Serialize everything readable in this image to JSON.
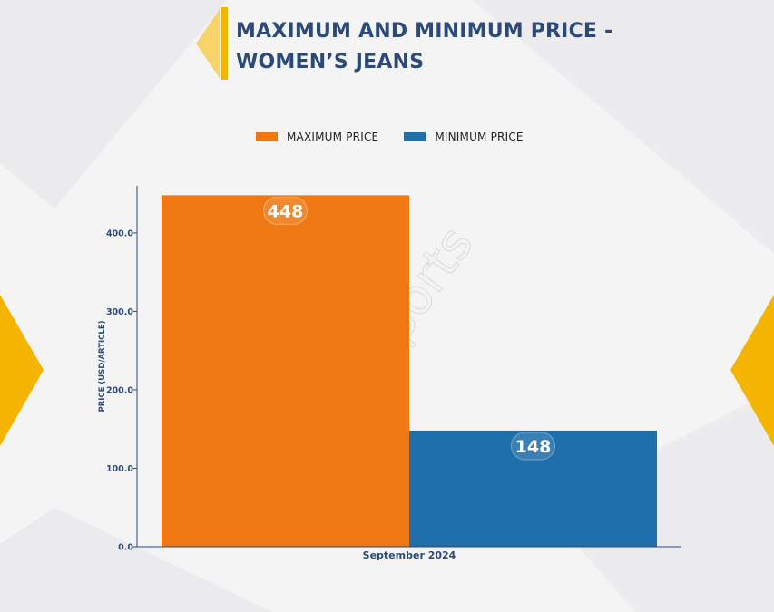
{
  "title": "MAXIMUM AND MINIMUM PRICE - WOMEN’S JEANS",
  "title_lines": [
    "MAXIMUM AND MINIMUM PRICE -",
    "WOMEN’S JEANS"
  ],
  "watermark": "D&J Reports",
  "colors": {
    "title": "#2c4a78",
    "accent": "#f5b400",
    "max": "#f07812",
    "min": "#1f6fab",
    "axis": "#2c4a78"
  },
  "legend": [
    {
      "label": "MAXIMUM PRICE",
      "color": "#f07812"
    },
    {
      "label": "MINIMUM PRICE",
      "color": "#1f6fab"
    }
  ],
  "chart_data": {
    "type": "bar",
    "categories": [
      "September 2024"
    ],
    "series": [
      {
        "name": "MAXIMUM PRICE",
        "values": [
          448
        ]
      },
      {
        "name": "MINIMUM PRICE",
        "values": [
          148
        ]
      }
    ],
    "xlabel": "September 2024",
    "ylabel": "PRICE (USD/ARTICLE)",
    "ylim": [
      0,
      460
    ],
    "yticks": [
      0,
      100,
      200,
      300,
      400
    ],
    "ytick_labels": [
      "0.0",
      "100.0",
      "200.0",
      "300.0",
      "400.0"
    ],
    "data_labels": [
      "448",
      "148"
    ],
    "legend_position": "top-center",
    "grid": false
  }
}
